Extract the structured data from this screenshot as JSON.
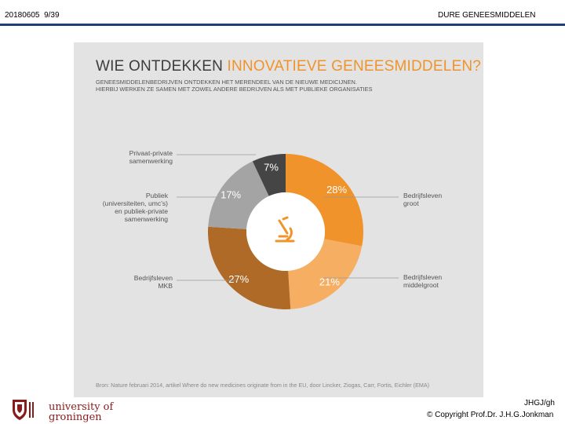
{
  "header": {
    "code": "20180605",
    "page": "9/39",
    "title": "DURE GENEESMIDDELEN"
  },
  "infographic": {
    "title_part1": "WIE ONTDEKKEN ",
    "title_part2": "INNOVATIEVE GENEESMIDDELEN?",
    "subtitle_line1": "GENEESMIDDELENBEDRIJVEN ONTDEKKEN HET MERENDEEL VAN DE NIEUWE MEDICIJNEN.",
    "subtitle_line2": "HIERBIJ WERKEN ZE SAMEN MET ZOWEL ANDERE BEDRIJVEN ALS MET PUBLIEKE ORGANISATIES",
    "source": "Bron: Nature februari 2014, artikel Where do new medicines originate from in the EU, door Lincker, Ziogas, Carr, Fortis, Eichler (EMA)"
  },
  "chart_data": {
    "type": "pie",
    "variant": "donut",
    "categories": [
      "Bedrijfsleven groot",
      "Bedrijfsleven middelgroot",
      "Bedrijfsleven MKB",
      "Publiek (universiteiten, umc's) en publiek-private samenwerking",
      "Privaat-private samenwerking"
    ],
    "values": [
      28,
      21,
      27,
      17,
      7
    ],
    "value_labels": [
      "28%",
      "21%",
      "27%",
      "17%",
      "7%"
    ],
    "callouts": [
      [
        "Bedrijfsleven",
        "groot"
      ],
      [
        "Bedrijfsleven",
        "middelgroot"
      ],
      [
        "Bedrijfsleven",
        "MKB"
      ],
      [
        "Publiek",
        "(universiteiten, umc's)",
        "en publiek-private",
        "samenwerking"
      ],
      [
        "Privaat-private",
        "samenwerking"
      ]
    ],
    "colors": [
      "#f0932b",
      "#f6ae63",
      "#b06a28",
      "#a4a4a4",
      "#454545"
    ],
    "label_colors": [
      "#ffffff",
      "#ffffff",
      "#ffffff",
      "#ffffff",
      "#ffffff"
    ],
    "center_icon": "microscope-icon",
    "center_icon_color": "#f0932b"
  },
  "footer": {
    "logo_line1": "university of",
    "logo_line2": "groningen",
    "author": "JHGJ/gh",
    "copyright": "© Copyright Prof.Dr. J.H.G.Jonkman"
  }
}
